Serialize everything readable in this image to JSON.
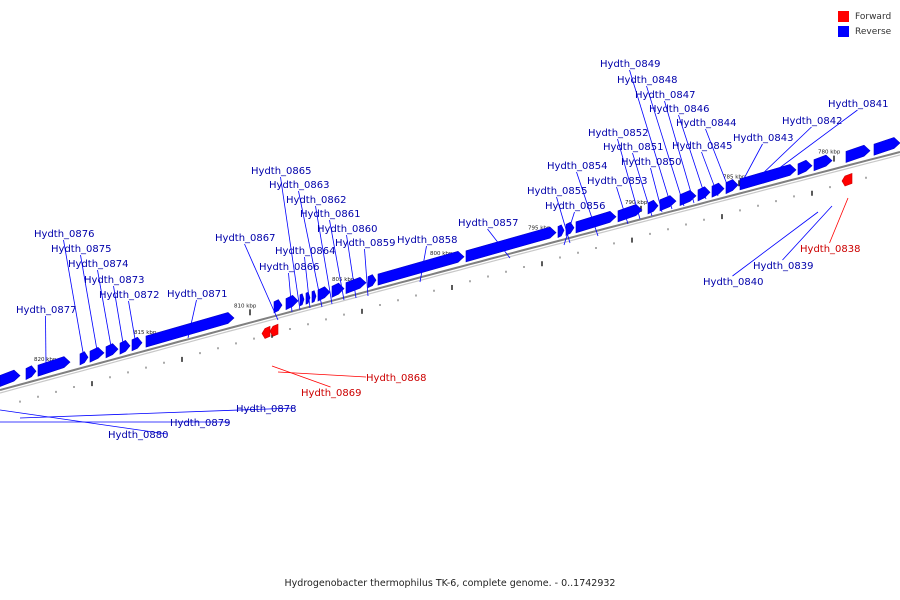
{
  "caption": "Hydrogenobacter thermophilus TK-6, complete genome. - 0..1742932",
  "legend": [
    {
      "label": "Forward",
      "color": "#ff0000"
    },
    {
      "label": "Reverse",
      "color": "#0000ff"
    }
  ],
  "colors": {
    "forward": "#ff0000",
    "reverse": "#0000ff",
    "forward_text": "#cc0000",
    "reverse_text": "#0000aa",
    "backbone": "#808080"
  },
  "scale_labels": [
    "780 kbp",
    "785 kbp",
    "790 kbp",
    "795 kbp",
    "800 kbp",
    "805 kbp",
    "810 kbp",
    "815 kbp",
    "820 kbp"
  ],
  "genes": [
    {
      "name": "Hydth_0841",
      "strand": "reverse"
    },
    {
      "name": "Hydth_0842",
      "strand": "reverse"
    },
    {
      "name": "Hydth_0843",
      "strand": "reverse"
    },
    {
      "name": "Hydth_0844",
      "strand": "reverse"
    },
    {
      "name": "Hydth_0845",
      "strand": "reverse"
    },
    {
      "name": "Hydth_0846",
      "strand": "reverse"
    },
    {
      "name": "Hydth_0847",
      "strand": "reverse"
    },
    {
      "name": "Hydth_0848",
      "strand": "reverse"
    },
    {
      "name": "Hydth_0849",
      "strand": "reverse"
    },
    {
      "name": "Hydth_0850",
      "strand": "reverse"
    },
    {
      "name": "Hydth_0851",
      "strand": "reverse"
    },
    {
      "name": "Hydth_0852",
      "strand": "reverse"
    },
    {
      "name": "Hydth_0853",
      "strand": "reverse"
    },
    {
      "name": "Hydth_0854",
      "strand": "reverse"
    },
    {
      "name": "Hydth_0855",
      "strand": "reverse"
    },
    {
      "name": "Hydth_0856",
      "strand": "reverse"
    },
    {
      "name": "Hydth_0857",
      "strand": "reverse"
    },
    {
      "name": "Hydth_0858",
      "strand": "reverse"
    },
    {
      "name": "Hydth_0859",
      "strand": "reverse"
    },
    {
      "name": "Hydth_0860",
      "strand": "reverse"
    },
    {
      "name": "Hydth_0861",
      "strand": "reverse"
    },
    {
      "name": "Hydth_0862",
      "strand": "reverse"
    },
    {
      "name": "Hydth_0863",
      "strand": "reverse"
    },
    {
      "name": "Hydth_0864",
      "strand": "reverse"
    },
    {
      "name": "Hydth_0865",
      "strand": "reverse"
    },
    {
      "name": "Hydth_0866",
      "strand": "reverse"
    },
    {
      "name": "Hydth_0867",
      "strand": "reverse"
    },
    {
      "name": "Hydth_0871",
      "strand": "reverse"
    },
    {
      "name": "Hydth_0872",
      "strand": "reverse"
    },
    {
      "name": "Hydth_0873",
      "strand": "reverse"
    },
    {
      "name": "Hydth_0874",
      "strand": "reverse"
    },
    {
      "name": "Hydth_0875",
      "strand": "reverse"
    },
    {
      "name": "Hydth_0876",
      "strand": "reverse"
    },
    {
      "name": "Hydth_0877",
      "strand": "reverse"
    },
    {
      "name": "Hydth_0838",
      "strand": "forward"
    },
    {
      "name": "Hydth_0839",
      "strand": "reverse"
    },
    {
      "name": "Hydth_0840",
      "strand": "reverse"
    },
    {
      "name": "Hydth_0868",
      "strand": "forward"
    },
    {
      "name": "Hydth_0869",
      "strand": "forward"
    },
    {
      "name": "Hydth_0878",
      "strand": "reverse"
    },
    {
      "name": "Hydth_0879",
      "strand": "reverse"
    },
    {
      "name": "Hydth_0880",
      "strand": "reverse"
    }
  ]
}
